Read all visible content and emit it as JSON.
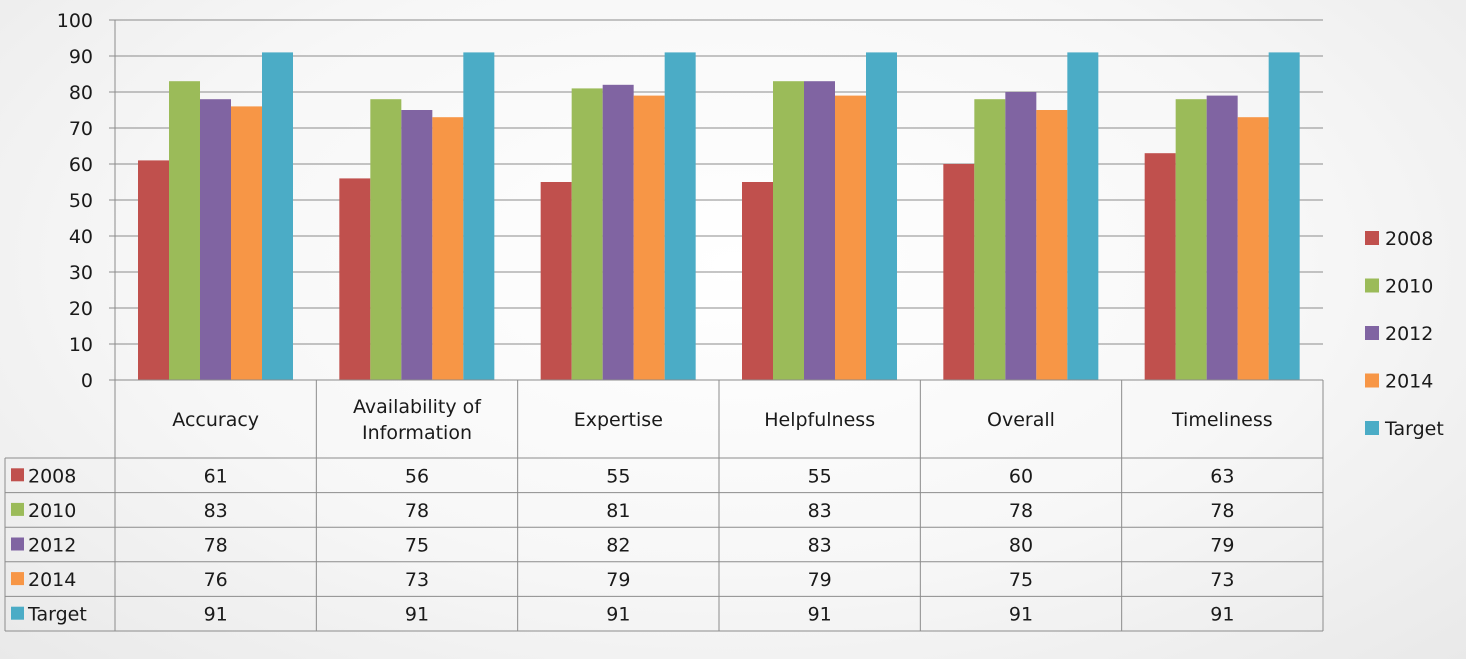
{
  "chart_data": {
    "type": "bar",
    "categories": [
      "Accuracy",
      "Availability of Information",
      "Expertise",
      "Helpfulness",
      "Overall",
      "Timeliness"
    ],
    "category_lines": [
      [
        "Accuracy"
      ],
      [
        "Availability of",
        "Information"
      ],
      [
        "Expertise"
      ],
      [
        "Helpfulness"
      ],
      [
        "Overall"
      ],
      [
        "Timeliness"
      ]
    ],
    "series": [
      {
        "name": "2008",
        "color": "#c0504d",
        "values": [
          61,
          56,
          55,
          55,
          60,
          63
        ]
      },
      {
        "name": "2010",
        "color": "#9bbb59",
        "values": [
          83,
          78,
          81,
          83,
          78,
          78
        ]
      },
      {
        "name": "2012",
        "color": "#8064a2",
        "values": [
          78,
          75,
          82,
          83,
          80,
          79
        ]
      },
      {
        "name": "2014",
        "color": "#f79646",
        "values": [
          76,
          73,
          79,
          79,
          75,
          73
        ]
      },
      {
        "name": "Target",
        "color": "#4bacc6",
        "values": [
          91,
          91,
          91,
          91,
          91,
          91
        ]
      }
    ],
    "y_ticks": [
      "0",
      "10",
      "20",
      "30",
      "40",
      "50",
      "60",
      "70",
      "80",
      "90",
      "100"
    ],
    "ylim": [
      0,
      100
    ],
    "grid": true,
    "legend_position": "right",
    "data_table": true
  }
}
